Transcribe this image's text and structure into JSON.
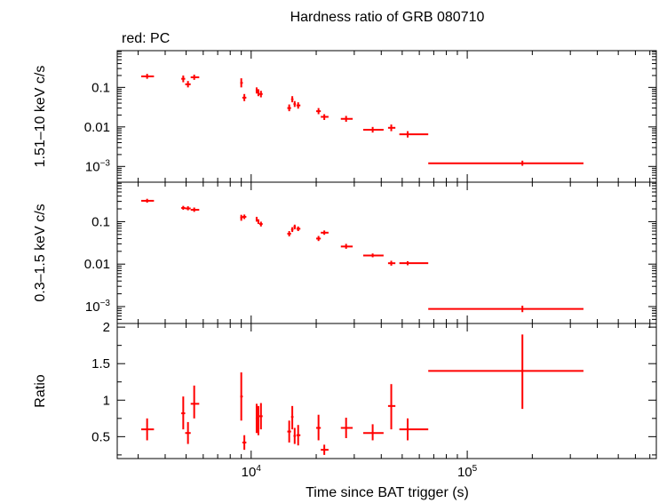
{
  "chart_data": {
    "type": "scatter",
    "title": "Hardness ratio of GRB 080710",
    "legend": "red: PC",
    "xlabel": "Time since BAT trigger (s)",
    "x_scale": "log",
    "xlim": [
      2400,
      750000
    ],
    "x_ticks": [
      {
        "value": 10000,
        "base": "10",
        "exp": "4"
      },
      {
        "value": 100000,
        "base": "10",
        "exp": "5"
      }
    ],
    "color": "#ff0000",
    "panels": [
      {
        "name": "hard",
        "ylabel": "1.51–10 keV c/s",
        "y_scale": "log",
        "ylim": [
          0.0004,
          0.85
        ],
        "y_ticks": [
          {
            "value": 0.1,
            "label": "0.1"
          },
          {
            "value": 0.01,
            "label": "0.01"
          },
          {
            "value": 0.001,
            "base": "10",
            "exp": "−3"
          }
        ],
        "points": [
          {
            "x": 3300,
            "xlo": 3100,
            "xhi": 3550,
            "y": 0.19,
            "ylo": 0.165,
            "yhi": 0.22
          },
          {
            "x": 4850,
            "xlo": 4750,
            "xhi": 4950,
            "y": 0.165,
            "ylo": 0.135,
            "yhi": 0.2
          },
          {
            "x": 5100,
            "xlo": 4950,
            "xhi": 5250,
            "y": 0.12,
            "ylo": 0.1,
            "yhi": 0.145
          },
          {
            "x": 5450,
            "xlo": 5250,
            "xhi": 5750,
            "y": 0.18,
            "ylo": 0.155,
            "yhi": 0.21
          },
          {
            "x": 9000,
            "xlo": 8900,
            "xhi": 9150,
            "y": 0.13,
            "ylo": 0.1,
            "yhi": 0.17
          },
          {
            "x": 9300,
            "xlo": 9100,
            "xhi": 9500,
            "y": 0.055,
            "ylo": 0.045,
            "yhi": 0.068
          },
          {
            "x": 10600,
            "xlo": 10500,
            "xhi": 10700,
            "y": 0.085,
            "ylo": 0.07,
            "yhi": 0.1
          },
          {
            "x": 10800,
            "xlo": 10700,
            "xhi": 10900,
            "y": 0.075,
            "ylo": 0.06,
            "yhi": 0.09
          },
          {
            "x": 11100,
            "xlo": 10900,
            "xhi": 11300,
            "y": 0.068,
            "ylo": 0.056,
            "yhi": 0.082
          },
          {
            "x": 15000,
            "xlo": 14700,
            "xhi": 15300,
            "y": 0.03,
            "ylo": 0.025,
            "yhi": 0.037
          },
          {
            "x": 15500,
            "xlo": 15300,
            "xhi": 15700,
            "y": 0.05,
            "ylo": 0.042,
            "yhi": 0.06
          },
          {
            "x": 15900,
            "xlo": 15700,
            "xhi": 16100,
            "y": 0.038,
            "ylo": 0.032,
            "yhi": 0.045
          },
          {
            "x": 16500,
            "xlo": 16200,
            "xhi": 16900,
            "y": 0.035,
            "ylo": 0.029,
            "yhi": 0.042
          },
          {
            "x": 20500,
            "xlo": 20000,
            "xhi": 21000,
            "y": 0.025,
            "ylo": 0.021,
            "yhi": 0.03
          },
          {
            "x": 21800,
            "xlo": 21000,
            "xhi": 22800,
            "y": 0.018,
            "ylo": 0.015,
            "yhi": 0.021
          },
          {
            "x": 27500,
            "xlo": 26000,
            "xhi": 29500,
            "y": 0.016,
            "ylo": 0.0135,
            "yhi": 0.019
          },
          {
            "x": 36500,
            "xlo": 33000,
            "xhi": 41000,
            "y": 0.0085,
            "ylo": 0.0072,
            "yhi": 0.01
          },
          {
            "x": 44500,
            "xlo": 43000,
            "xhi": 46500,
            "y": 0.0095,
            "ylo": 0.0078,
            "yhi": 0.0115
          },
          {
            "x": 53000,
            "xlo": 48500,
            "xhi": 66000,
            "y": 0.0065,
            "ylo": 0.0054,
            "yhi": 0.0078
          },
          {
            "x": 180000,
            "xlo": 66000,
            "xhi": 345000,
            "y": 0.0012,
            "ylo": 0.00104,
            "yhi": 0.0014
          }
        ]
      },
      {
        "name": "soft",
        "ylabel": "0.3–1.5 keV c/s",
        "y_scale": "log",
        "ylim": [
          0.0004,
          0.85
        ],
        "y_ticks": [
          {
            "value": 0.1,
            "label": "0.1"
          },
          {
            "value": 0.01,
            "label": "0.01"
          },
          {
            "value": 0.001,
            "base": "10",
            "exp": "−3"
          }
        ],
        "points": [
          {
            "x": 3300,
            "xlo": 3100,
            "xhi": 3550,
            "y": 0.31,
            "ylo": 0.28,
            "yhi": 0.345
          },
          {
            "x": 4850,
            "xlo": 4750,
            "xhi": 4950,
            "y": 0.21,
            "ylo": 0.19,
            "yhi": 0.235
          },
          {
            "x": 5100,
            "xlo": 4950,
            "xhi": 5250,
            "y": 0.205,
            "ylo": 0.185,
            "yhi": 0.23
          },
          {
            "x": 5450,
            "xlo": 5250,
            "xhi": 5750,
            "y": 0.19,
            "ylo": 0.17,
            "yhi": 0.215
          },
          {
            "x": 9000,
            "xlo": 8900,
            "xhi": 9150,
            "y": 0.125,
            "ylo": 0.105,
            "yhi": 0.145
          },
          {
            "x": 9300,
            "xlo": 9100,
            "xhi": 9500,
            "y": 0.13,
            "ylo": 0.115,
            "yhi": 0.147
          },
          {
            "x": 10600,
            "xlo": 10500,
            "xhi": 10700,
            "y": 0.115,
            "ylo": 0.1,
            "yhi": 0.13
          },
          {
            "x": 10800,
            "xlo": 10700,
            "xhi": 10900,
            "y": 0.1,
            "ylo": 0.088,
            "yhi": 0.114
          },
          {
            "x": 11100,
            "xlo": 10900,
            "xhi": 11300,
            "y": 0.088,
            "ylo": 0.077,
            "yhi": 0.1
          },
          {
            "x": 15000,
            "xlo": 14700,
            "xhi": 15300,
            "y": 0.052,
            "ylo": 0.045,
            "yhi": 0.06
          },
          {
            "x": 15500,
            "xlo": 15300,
            "xhi": 15700,
            "y": 0.065,
            "ylo": 0.057,
            "yhi": 0.074
          },
          {
            "x": 15900,
            "xlo": 15700,
            "xhi": 16100,
            "y": 0.075,
            "ylo": 0.066,
            "yhi": 0.085
          },
          {
            "x": 16500,
            "xlo": 16200,
            "xhi": 16900,
            "y": 0.068,
            "ylo": 0.06,
            "yhi": 0.077
          },
          {
            "x": 20500,
            "xlo": 20000,
            "xhi": 21000,
            "y": 0.04,
            "ylo": 0.035,
            "yhi": 0.046
          },
          {
            "x": 21800,
            "xlo": 21000,
            "xhi": 22800,
            "y": 0.055,
            "ylo": 0.049,
            "yhi": 0.062
          },
          {
            "x": 27500,
            "xlo": 26000,
            "xhi": 29500,
            "y": 0.026,
            "ylo": 0.023,
            "yhi": 0.03
          },
          {
            "x": 36500,
            "xlo": 33000,
            "xhi": 41000,
            "y": 0.016,
            "ylo": 0.0145,
            "yhi": 0.0178
          },
          {
            "x": 44500,
            "xlo": 43000,
            "xhi": 46500,
            "y": 0.0105,
            "ylo": 0.0092,
            "yhi": 0.012
          },
          {
            "x": 53000,
            "xlo": 48500,
            "xhi": 66000,
            "y": 0.0105,
            "ylo": 0.0094,
            "yhi": 0.0117
          },
          {
            "x": 180000,
            "xlo": 66000,
            "xhi": 345000,
            "y": 0.00088,
            "ylo": 0.00074,
            "yhi": 0.00105
          }
        ]
      },
      {
        "name": "ratio",
        "ylabel": "Ratio",
        "y_scale": "linear",
        "ylim": [
          0.2,
          2.05
        ],
        "y_ticks": [
          {
            "value": 0.5,
            "label": "0.5"
          },
          {
            "value": 1,
            "label": "1"
          },
          {
            "value": 1.5,
            "label": "1.5"
          },
          {
            "value": 2,
            "label": "2"
          }
        ],
        "points": [
          {
            "x": 3300,
            "xlo": 3100,
            "xhi": 3550,
            "y": 0.6,
            "ylo": 0.45,
            "yhi": 0.75
          },
          {
            "x": 4850,
            "xlo": 4750,
            "xhi": 4950,
            "y": 0.82,
            "ylo": 0.6,
            "yhi": 1.05
          },
          {
            "x": 5100,
            "xlo": 4950,
            "xhi": 5250,
            "y": 0.55,
            "ylo": 0.4,
            "yhi": 0.7
          },
          {
            "x": 5450,
            "xlo": 5250,
            "xhi": 5750,
            "y": 0.95,
            "ylo": 0.75,
            "yhi": 1.2
          },
          {
            "x": 9000,
            "xlo": 8900,
            "xhi": 9150,
            "y": 1.05,
            "ylo": 0.72,
            "yhi": 1.38
          },
          {
            "x": 9300,
            "xlo": 9100,
            "xhi": 9500,
            "y": 0.42,
            "ylo": 0.32,
            "yhi": 0.52
          },
          {
            "x": 10600,
            "xlo": 10500,
            "xhi": 10700,
            "y": 0.75,
            "ylo": 0.55,
            "yhi": 0.95
          },
          {
            "x": 10800,
            "xlo": 10700,
            "xhi": 10900,
            "y": 0.72,
            "ylo": 0.52,
            "yhi": 0.92
          },
          {
            "x": 11100,
            "xlo": 10900,
            "xhi": 11300,
            "y": 0.78,
            "ylo": 0.6,
            "yhi": 0.96
          },
          {
            "x": 15000,
            "xlo": 14700,
            "xhi": 15300,
            "y": 0.57,
            "ylo": 0.42,
            "yhi": 0.72
          },
          {
            "x": 15500,
            "xlo": 15300,
            "xhi": 15700,
            "y": 0.77,
            "ylo": 0.6,
            "yhi": 0.92
          },
          {
            "x": 15900,
            "xlo": 15700,
            "xhi": 16100,
            "y": 0.51,
            "ylo": 0.4,
            "yhi": 0.62
          },
          {
            "x": 16500,
            "xlo": 16200,
            "xhi": 16900,
            "y": 0.52,
            "ylo": 0.38,
            "yhi": 0.66
          },
          {
            "x": 20500,
            "xlo": 20000,
            "xhi": 21000,
            "y": 0.62,
            "ylo": 0.45,
            "yhi": 0.8
          },
          {
            "x": 21800,
            "xlo": 21000,
            "xhi": 22800,
            "y": 0.32,
            "ylo": 0.25,
            "yhi": 0.39
          },
          {
            "x": 27500,
            "xlo": 26000,
            "xhi": 29500,
            "y": 0.62,
            "ylo": 0.48,
            "yhi": 0.76
          },
          {
            "x": 36500,
            "xlo": 33000,
            "xhi": 41000,
            "y": 0.55,
            "ylo": 0.45,
            "yhi": 0.67
          },
          {
            "x": 44500,
            "xlo": 43000,
            "xhi": 46500,
            "y": 0.92,
            "ylo": 0.6,
            "yhi": 1.22
          },
          {
            "x": 53000,
            "xlo": 48500,
            "xhi": 66000,
            "y": 0.6,
            "ylo": 0.45,
            "yhi": 0.75
          },
          {
            "x": 180000,
            "xlo": 66000,
            "xhi": 345000,
            "y": 1.4,
            "ylo": 0.88,
            "yhi": 1.9
          }
        ]
      }
    ]
  }
}
